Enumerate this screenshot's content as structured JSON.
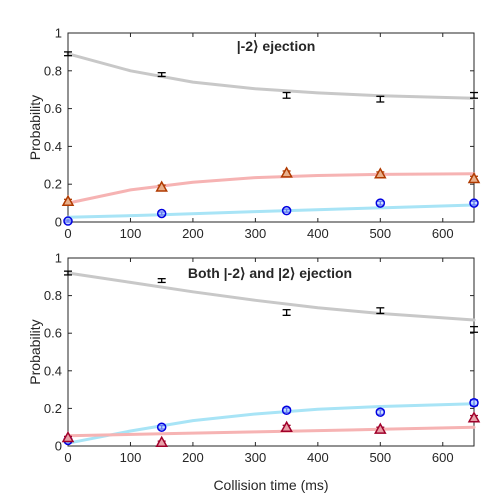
{
  "figure": {
    "shared_xlabel": "Collision time (ms)"
  },
  "chart_data": [
    {
      "type": "scatter",
      "title": "|-2⟩ ejection",
      "xlabel": "",
      "ylabel": "Probability",
      "xlim": [
        0,
        650
      ],
      "ylim": [
        0,
        1
      ],
      "xticks": [
        0,
        100,
        200,
        300,
        400,
        500,
        600
      ],
      "yticks": [
        0,
        0.2,
        0.4,
        0.6,
        0.8,
        1
      ],
      "ytick_labels": [
        "0",
        "0.2",
        "0.4",
        "0.6",
        "0.8",
        "1"
      ],
      "grid": false,
      "series": [
        {
          "marker": "square",
          "color": "#000000",
          "curve_color": "#c8c8c8",
          "x": [
            0,
            150,
            350,
            500,
            650
          ],
          "y": [
            0.89,
            0.78,
            0.67,
            0.65,
            0.67
          ],
          "err": [
            0.01,
            0.01,
            0.015,
            0.015,
            0.015
          ],
          "fit": [
            [
              0,
              0.89
            ],
            [
              100,
              0.8
            ],
            [
              200,
              0.74
            ],
            [
              300,
              0.705
            ],
            [
              400,
              0.683
            ],
            [
              500,
              0.668
            ],
            [
              650,
              0.655
            ]
          ]
        },
        {
          "marker": "triangle",
          "color": "#b03a00",
          "face": "#e8b08c",
          "curve_color": "#f6b3b3",
          "x": [
            0,
            150,
            350,
            500,
            650
          ],
          "y": [
            0.11,
            0.185,
            0.26,
            0.255,
            0.23
          ],
          "err": [
            0.01,
            0.01,
            0.01,
            0.01,
            0.012
          ],
          "fit": [
            [
              0,
              0.1
            ],
            [
              100,
              0.17
            ],
            [
              200,
              0.21
            ],
            [
              300,
              0.235
            ],
            [
              400,
              0.246
            ],
            [
              500,
              0.252
            ],
            [
              650,
              0.255
            ]
          ]
        },
        {
          "marker": "circle",
          "color": "#0000e0",
          "face": "#a8c8ff",
          "curve_color": "#a8e4f6",
          "x": [
            0,
            150,
            350,
            500,
            650
          ],
          "y": [
            0.005,
            0.045,
            0.06,
            0.1,
            0.1
          ],
          "err": [
            0.005,
            0.008,
            0.008,
            0.01,
            0.01
          ],
          "fit": [
            [
              0,
              0.025
            ],
            [
              150,
              0.038
            ],
            [
              300,
              0.055
            ],
            [
              450,
              0.07
            ],
            [
              650,
              0.09
            ]
          ]
        }
      ]
    },
    {
      "type": "scatter",
      "title": "Both |-2⟩ and |2⟩ ejection",
      "xlabel": "Collision time (ms)",
      "ylabel": "Probability",
      "xlim": [
        0,
        650
      ],
      "ylim": [
        0,
        1
      ],
      "xticks": [
        0,
        100,
        200,
        300,
        400,
        500,
        600
      ],
      "yticks": [
        0,
        0.2,
        0.4,
        0.6,
        0.8,
        1
      ],
      "ytick_labels": [
        "0",
        "0.2",
        "0.4",
        "0.6",
        "0.8",
        "1"
      ],
      "grid": false,
      "series": [
        {
          "marker": "square",
          "color": "#000000",
          "curve_color": "#c8c8c8",
          "x": [
            0,
            150,
            350,
            500,
            650
          ],
          "y": [
            0.92,
            0.88,
            0.71,
            0.72,
            0.62
          ],
          "err": [
            0.01,
            0.01,
            0.015,
            0.015,
            0.015
          ],
          "fit": [
            [
              0,
              0.92
            ],
            [
              100,
              0.87
            ],
            [
              200,
              0.82
            ],
            [
              300,
              0.775
            ],
            [
              400,
              0.735
            ],
            [
              500,
              0.705
            ],
            [
              650,
              0.67
            ]
          ]
        },
        {
          "marker": "circle",
          "color": "#0000e0",
          "face": "#a8c8ff",
          "curve_color": "#a8e4f6",
          "x": [
            0,
            150,
            350,
            500,
            650
          ],
          "y": [
            0.03,
            0.1,
            0.19,
            0.18,
            0.23
          ],
          "err": [
            0.008,
            0.01,
            0.012,
            0.012,
            0.015
          ],
          "fit": [
            [
              0,
              0.015
            ],
            [
              100,
              0.08
            ],
            [
              200,
              0.135
            ],
            [
              300,
              0.17
            ],
            [
              400,
              0.195
            ],
            [
              500,
              0.21
            ],
            [
              650,
              0.225
            ]
          ]
        },
        {
          "marker": "triangle",
          "color": "#a0002a",
          "face": "#e8a0a8",
          "curve_color": "#f6b3b3",
          "x": [
            0,
            150,
            350,
            500,
            650
          ],
          "y": [
            0.045,
            0.02,
            0.1,
            0.09,
            0.15
          ],
          "err": [
            0.006,
            0.006,
            0.01,
            0.01,
            0.012
          ],
          "fit": [
            [
              0,
              0.055
            ],
            [
              150,
              0.065
            ],
            [
              300,
              0.075
            ],
            [
              450,
              0.085
            ],
            [
              650,
              0.1
            ]
          ]
        }
      ]
    }
  ]
}
